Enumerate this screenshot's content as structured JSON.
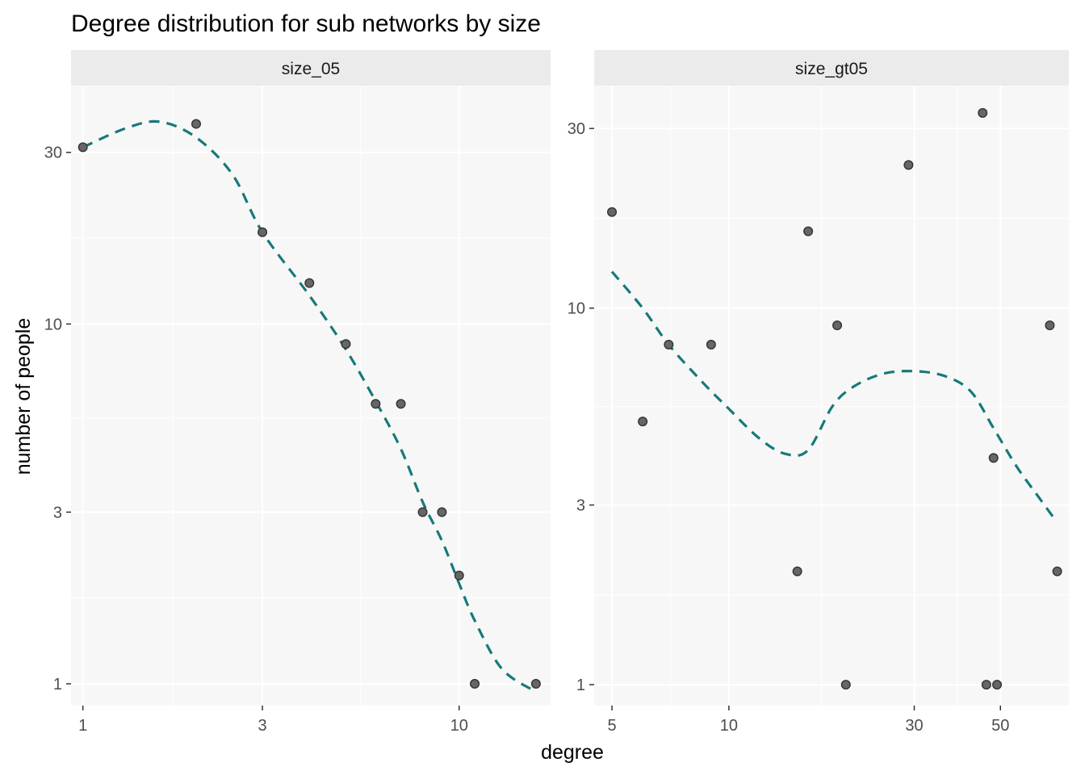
{
  "chart_data": {
    "type": "scatter",
    "title": "Degree distribution for sub networks by size",
    "xlabel": "degree",
    "ylabel": "number of people",
    "x_scale": "log10",
    "y_scale": "log10",
    "trend": {
      "style": "dashed",
      "color": "#17797a"
    },
    "point_color": "#666666",
    "panel_background": "#f7f7f7",
    "strip_background": "#ebebeb",
    "grid": true,
    "panels": [
      {
        "name": "size_05",
        "xlim": [
          0.93,
          17.5
        ],
        "ylim": [
          0.87,
          46
        ],
        "x_ticks": [
          1,
          3,
          10
        ],
        "y_ticks": [
          1,
          3,
          10,
          30
        ],
        "points": [
          {
            "x": 1,
            "y": 31
          },
          {
            "x": 2,
            "y": 36
          },
          {
            "x": 3,
            "y": 18
          },
          {
            "x": 4,
            "y": 13
          },
          {
            "x": 5,
            "y": 8.8
          },
          {
            "x": 6,
            "y": 6
          },
          {
            "x": 7,
            "y": 6
          },
          {
            "x": 8,
            "y": 3
          },
          {
            "x": 9,
            "y": 3
          },
          {
            "x": 10,
            "y": 2
          },
          {
            "x": 11,
            "y": 1
          },
          {
            "x": 16,
            "y": 1
          }
        ],
        "trend_points": [
          {
            "x": 1,
            "y": 31
          },
          {
            "x": 1.3,
            "y": 35
          },
          {
            "x": 1.6,
            "y": 36.5
          },
          {
            "x": 2,
            "y": 33
          },
          {
            "x": 2.5,
            "y": 26
          },
          {
            "x": 3,
            "y": 18
          },
          {
            "x": 4,
            "y": 12
          },
          {
            "x": 5,
            "y": 8.5
          },
          {
            "x": 6,
            "y": 6.1
          },
          {
            "x": 7,
            "y": 4.5
          },
          {
            "x": 8,
            "y": 3.2
          },
          {
            "x": 9,
            "y": 2.5
          },
          {
            "x": 10,
            "y": 1.9
          },
          {
            "x": 11,
            "y": 1.5
          },
          {
            "x": 13,
            "y": 1.1
          },
          {
            "x": 16,
            "y": 0.95
          }
        ]
      },
      {
        "name": "size_gt05",
        "xlim": [
          4.5,
          75
        ],
        "ylim": [
          0.88,
          39
        ],
        "x_ticks": [
          5,
          10,
          30,
          50
        ],
        "y_ticks": [
          1,
          3,
          10,
          30
        ],
        "points": [
          {
            "x": 5,
            "y": 18
          },
          {
            "x": 6,
            "y": 5
          },
          {
            "x": 7,
            "y": 8
          },
          {
            "x": 9,
            "y": 8
          },
          {
            "x": 15,
            "y": 2
          },
          {
            "x": 16,
            "y": 16
          },
          {
            "x": 20,
            "y": 1
          },
          {
            "x": 19,
            "y": 9
          },
          {
            "x": 29,
            "y": 24
          },
          {
            "x": 45,
            "y": 33
          },
          {
            "x": 46,
            "y": 1
          },
          {
            "x": 48,
            "y": 4
          },
          {
            "x": 49,
            "y": 1
          },
          {
            "x": 67,
            "y": 9
          },
          {
            "x": 70,
            "y": 2
          }
        ],
        "trend_points": [
          {
            "x": 5,
            "y": 12.5
          },
          {
            "x": 6,
            "y": 10
          },
          {
            "x": 7,
            "y": 8
          },
          {
            "x": 8.5,
            "y": 6.4
          },
          {
            "x": 10,
            "y": 5.4
          },
          {
            "x": 12,
            "y": 4.5
          },
          {
            "x": 14,
            "y": 4.1
          },
          {
            "x": 16,
            "y": 4.2
          },
          {
            "x": 18.5,
            "y": 5.5
          },
          {
            "x": 21,
            "y": 6.2
          },
          {
            "x": 25,
            "y": 6.7
          },
          {
            "x": 30,
            "y": 6.8
          },
          {
            "x": 36,
            "y": 6.6
          },
          {
            "x": 42,
            "y": 6
          },
          {
            "x": 48,
            "y": 4.8
          },
          {
            "x": 55,
            "y": 3.8
          },
          {
            "x": 62,
            "y": 3.2
          },
          {
            "x": 69,
            "y": 2.75
          }
        ]
      }
    ]
  }
}
